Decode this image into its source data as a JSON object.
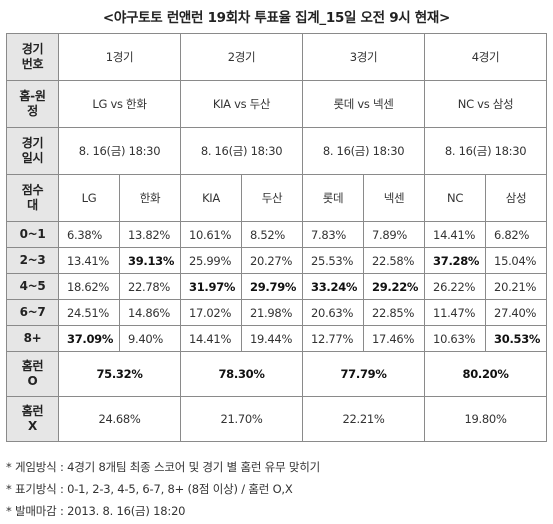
{
  "title": "<야구토토 런앤런 19회차 투표율 집계_15일 오전 9시 현재>",
  "headers": {
    "game_no": [
      "경기",
      "번호"
    ],
    "home_away": [
      "홈-원",
      "정"
    ],
    "schedule": [
      "경기",
      "일시"
    ],
    "score_pts": [
      "점수",
      "대"
    ],
    "homerun_o": [
      "홈런",
      "O"
    ],
    "homerun_x": [
      "홈런",
      "X"
    ]
  },
  "games": [
    {
      "no": "1경기",
      "matchup": "LG vs 한화",
      "datetime": "8. 16(금) 18:30",
      "teams": [
        "LG",
        "한화"
      ]
    },
    {
      "no": "2경기",
      "matchup": "KIA vs 두산",
      "datetime": "8. 16(금) 18:30",
      "teams": [
        "KIA",
        "두산"
      ]
    },
    {
      "no": "3경기",
      "matchup": "롯데 vs 넥센",
      "datetime": "8. 16(금) 18:30",
      "teams": [
        "롯데",
        "넥센"
      ]
    },
    {
      "no": "4경기",
      "matchup": "NC vs 삼성",
      "datetime": "8. 16(금) 18:30",
      "teams": [
        "NC",
        "삼성"
      ]
    }
  ],
  "score_rows": [
    {
      "label": "0~1",
      "values": [
        "6.38%",
        "13.82%",
        "10.61%",
        "8.52%",
        "7.83%",
        "7.89%",
        "14.41%",
        "6.82%"
      ],
      "bold": [
        false,
        false,
        false,
        false,
        false,
        false,
        false,
        false
      ]
    },
    {
      "label": "2~3",
      "values": [
        "13.41%",
        "39.13%",
        "25.99%",
        "20.27%",
        "25.53%",
        "22.58%",
        "37.28%",
        "15.04%"
      ],
      "bold": [
        false,
        true,
        false,
        false,
        false,
        false,
        true,
        false
      ]
    },
    {
      "label": "4~5",
      "values": [
        "18.62%",
        "22.78%",
        "31.97%",
        "29.79%",
        "33.24%",
        "29.22%",
        "26.22%",
        "20.21%"
      ],
      "bold": [
        false,
        false,
        true,
        true,
        true,
        true,
        false,
        false
      ]
    },
    {
      "label": "6~7",
      "values": [
        "24.51%",
        "14.86%",
        "17.02%",
        "21.98%",
        "20.63%",
        "22.85%",
        "11.47%",
        "27.40%"
      ],
      "bold": [
        false,
        false,
        false,
        false,
        false,
        false,
        false,
        false
      ]
    },
    {
      "label": "8+",
      "values": [
        "37.09%",
        "9.40%",
        "14.41%",
        "19.44%",
        "12.77%",
        "17.46%",
        "10.63%",
        "30.53%"
      ],
      "bold": [
        true,
        false,
        false,
        false,
        false,
        false,
        false,
        true
      ]
    }
  ],
  "homerun_o": [
    "75.32%",
    "78.30%",
    "77.79%",
    "80.20%"
  ],
  "homerun_x": [
    "24.68%",
    "21.70%",
    "22.21%",
    "19.80%"
  ],
  "notes": [
    "* 게임방식 : 4경기 8개팀 최종 스코어 및 경기 별 홈런 유무 맞히기",
    "* 표기방식 : 0-1, 2-3, 4-5, 6-7, 8+ (8점 이상) / 홈런 O,X",
    "* 발매마감 : 2013. 8. 16(금) 18:20"
  ]
}
